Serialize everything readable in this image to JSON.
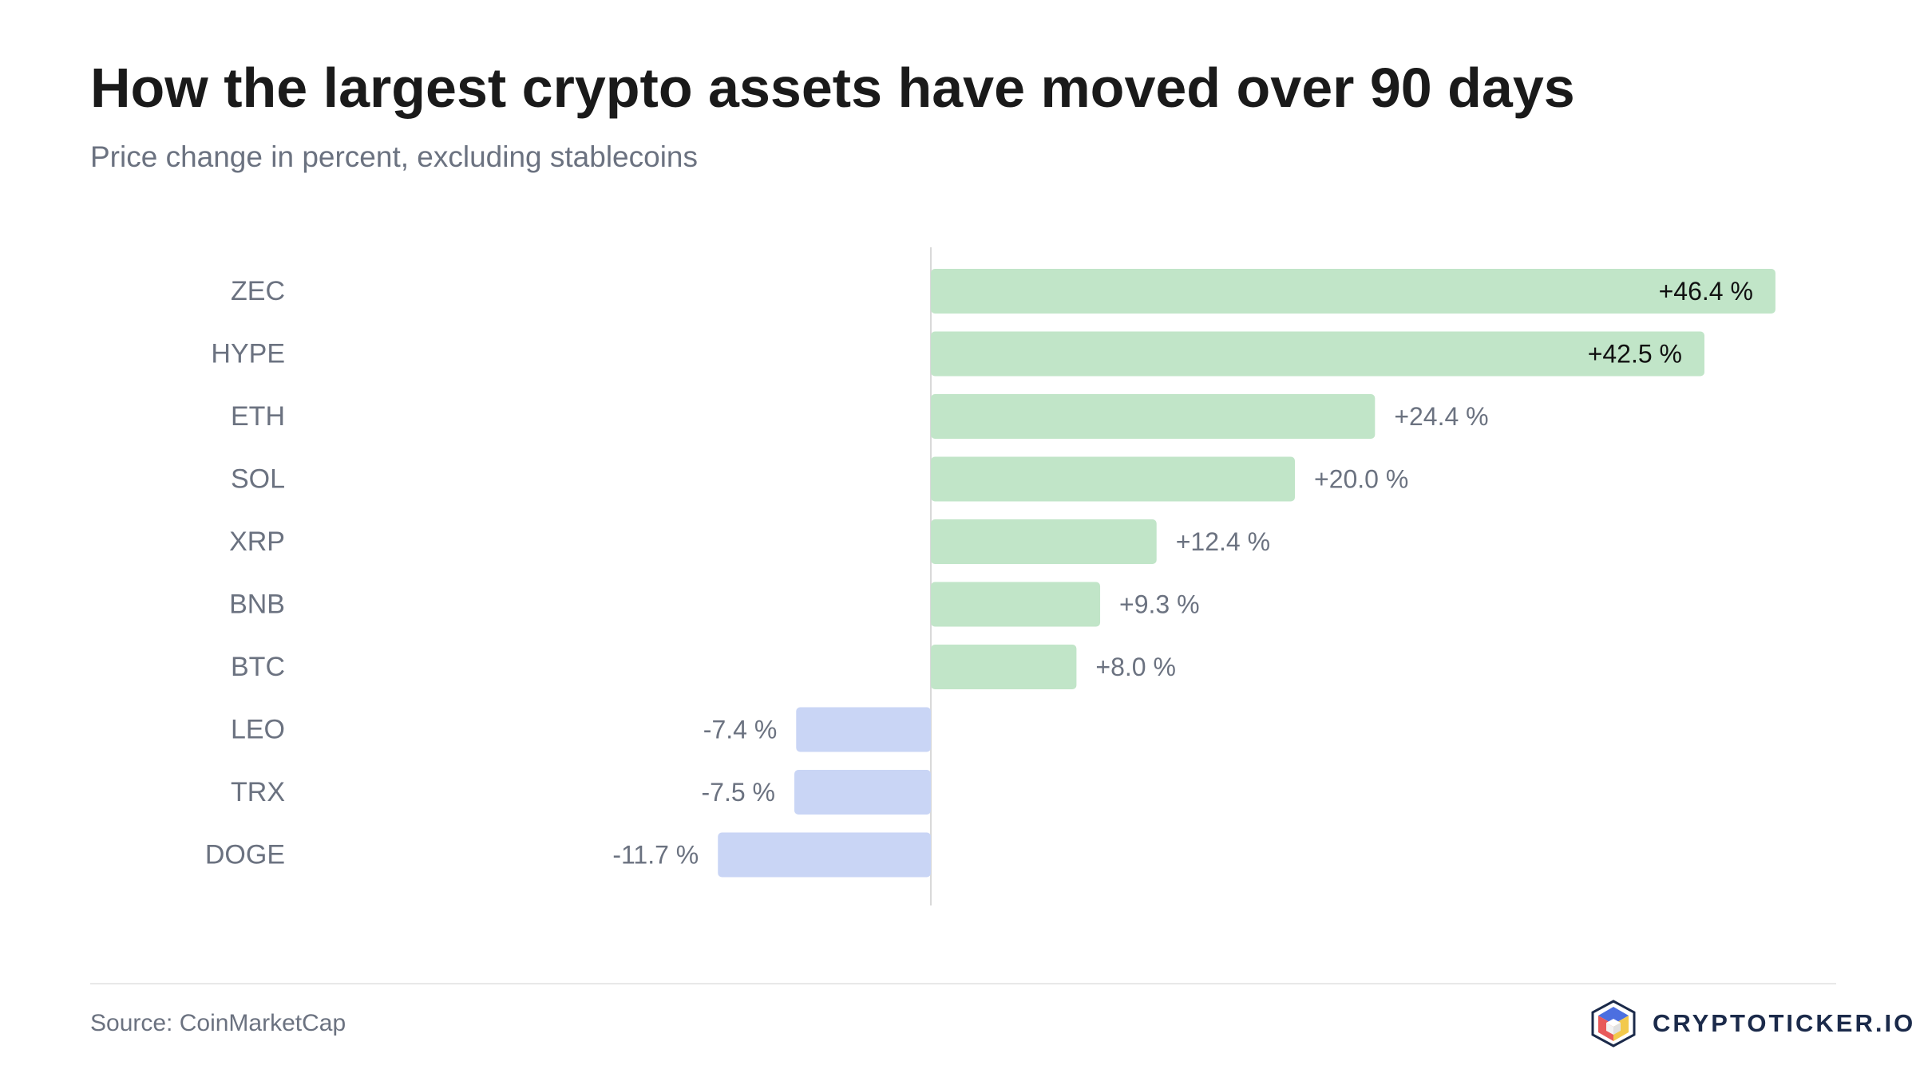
{
  "title": "How the largest crypto assets have moved over 90 days",
  "subtitle": "Price change in percent, excluding stablecoins",
  "source": "Source: CoinMarketCap",
  "brand": {
    "name": "CRYPTOTICKER.IO",
    "icon": "cube-logo-icon"
  },
  "colors": {
    "positive": "#c1e5c8",
    "negative": "#c9d5f5",
    "label": "#6b7280",
    "inside_label": "#111111",
    "zero_line": "#d9d9d9"
  },
  "chart_data": {
    "type": "bar",
    "orientation": "horizontal",
    "categories": [
      "ZEC",
      "HYPE",
      "ETH",
      "SOL",
      "XRP",
      "BNB",
      "BTC",
      "LEO",
      "TRX",
      "DOGE"
    ],
    "values": [
      46.4,
      42.5,
      24.4,
      20.0,
      12.4,
      9.3,
      8.0,
      -7.4,
      -7.5,
      -11.7
    ],
    "data_labels": [
      "+46.4 %",
      "+42.5 %",
      "+24.4 %",
      "+20.0 %",
      "+12.4 %",
      "+9.3 %",
      "+8.0 %",
      "-7.4 %",
      "-7.5 %",
      "-11.7 %"
    ],
    "title": "How the largest crypto assets have moved over 90 days",
    "subtitle": "Price change in percent, excluding stablecoins",
    "xlim": [
      -35.5,
      50
    ],
    "grid": false,
    "legend": "none"
  }
}
